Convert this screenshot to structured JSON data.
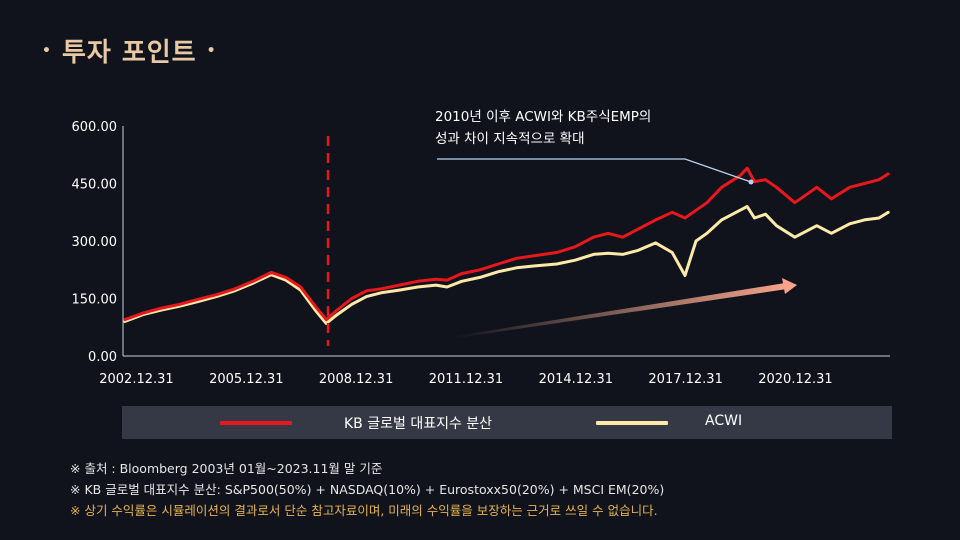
{
  "title": "투자 포인트",
  "title_dot": "•",
  "annotation": {
    "line1": "2010년 이후 ACWI와 KB주식EMP의",
    "line2": "성과 차이 지속적으로 확대"
  },
  "colors": {
    "background": "#10131c",
    "kb_series": "#e8171c",
    "acwi_series": "#fde9a8",
    "title": "#e9c9a3",
    "disclaimer": "#e6b24d"
  },
  "chart_data": {
    "type": "line",
    "ylim": [
      0,
      600
    ],
    "yticks": [
      "600.00",
      "450.00",
      "300.00",
      "150.00",
      "0.00"
    ],
    "ytick_values": [
      600,
      450,
      300,
      150,
      0
    ],
    "xticks": [
      "2002.12.31",
      "2005.12.31",
      "2008.12.31",
      "2011.12.31",
      "2014.12.31",
      "2017.12.31",
      "2020.12.31"
    ],
    "xtick_values": [
      2002.99,
      2005.99,
      2008.99,
      2011.99,
      2014.99,
      2017.99,
      2020.99
    ],
    "xlim": [
      2002.95,
      2023.9
    ],
    "marker_year": 2008.55,
    "series": [
      {
        "name": "KB 글로벌 대표지수 분산",
        "x": [
          2003.0,
          2003.5,
          2004.0,
          2004.5,
          2005.0,
          2005.5,
          2006.0,
          2006.5,
          2007.0,
          2007.4,
          2007.8,
          2008.2,
          2008.5,
          2008.8,
          2009.2,
          2009.6,
          2010.0,
          2010.5,
          2011.0,
          2011.5,
          2011.8,
          2012.2,
          2012.7,
          2013.2,
          2013.7,
          2014.2,
          2014.8,
          2015.3,
          2015.8,
          2016.2,
          2016.6,
          2017.0,
          2017.5,
          2017.95,
          2018.3,
          2018.6,
          2018.9,
          2019.3,
          2019.8,
          2020.0,
          2020.2,
          2020.5,
          2020.8,
          2021.3,
          2021.9,
          2022.3,
          2022.8,
          2023.2,
          2023.6,
          2023.85
        ],
        "values": [
          95,
          112,
          125,
          135,
          148,
          160,
          175,
          195,
          218,
          205,
          180,
          130,
          95,
          120,
          150,
          170,
          175,
          185,
          195,
          200,
          198,
          215,
          225,
          240,
          255,
          262,
          270,
          285,
          310,
          320,
          310,
          330,
          355,
          375,
          360,
          380,
          400,
          440,
          470,
          490,
          455,
          460,
          440,
          400,
          440,
          410,
          440,
          450,
          460,
          475
        ]
      },
      {
        "name": "ACWI",
        "x": [
          2003.0,
          2003.5,
          2004.0,
          2004.5,
          2005.0,
          2005.5,
          2006.0,
          2006.5,
          2007.0,
          2007.4,
          2007.8,
          2008.2,
          2008.5,
          2008.8,
          2009.2,
          2009.6,
          2010.0,
          2010.5,
          2011.0,
          2011.5,
          2011.8,
          2012.2,
          2012.7,
          2013.2,
          2013.7,
          2014.2,
          2014.8,
          2015.3,
          2015.8,
          2016.2,
          2016.6,
          2017.0,
          2017.5,
          2017.95,
          2018.3,
          2018.6,
          2018.9,
          2019.3,
          2019.8,
          2020.0,
          2020.2,
          2020.5,
          2020.8,
          2021.3,
          2021.9,
          2022.3,
          2022.8,
          2023.2,
          2023.6,
          2023.85
        ],
        "values": [
          90,
          108,
          120,
          130,
          142,
          155,
          170,
          190,
          212,
          198,
          172,
          120,
          85,
          108,
          135,
          155,
          165,
          172,
          180,
          185,
          180,
          195,
          205,
          220,
          230,
          235,
          240,
          250,
          265,
          268,
          265,
          275,
          295,
          270,
          210,
          300,
          320,
          355,
          380,
          390,
          360,
          370,
          340,
          310,
          340,
          320,
          345,
          355,
          360,
          375
        ]
      }
    ]
  },
  "legend": {
    "kb_label": "KB 글로벌 대표지수 분산",
    "acwi_label": "ACWI"
  },
  "notes": {
    "source": "※ 출처 : Bloomberg 2003년 01월~2023.11월 말 기준",
    "composition": "※ KB 글로벌 대표지수 분산: S&P500(50%) + NASDAQ(10%) + Eurostoxx50(20%) + MSCI EM(20%)",
    "disclaimer": "※ 상기 수익률은 시뮬레이션의 결과로서 단순 참고자료이며, 미래의 수익률을 보장하는 근거로 쓰일 수 없습니다."
  }
}
